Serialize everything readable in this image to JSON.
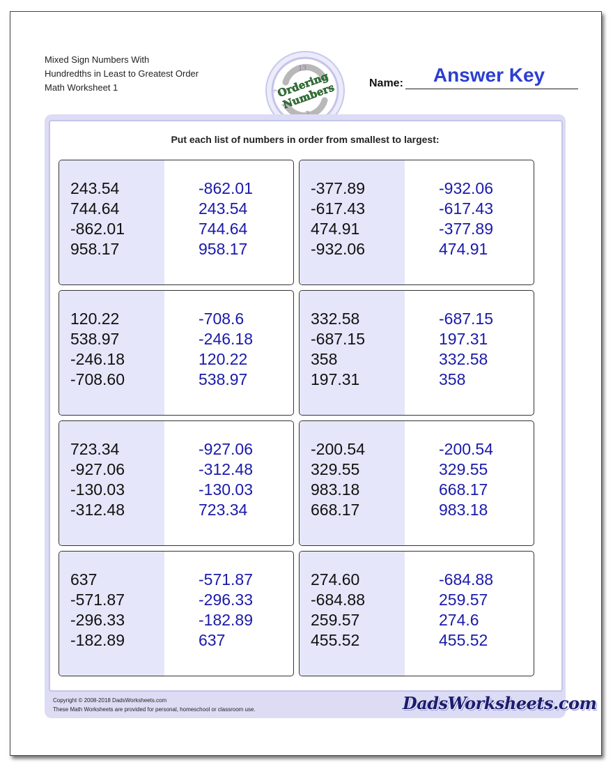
{
  "header": {
    "title_lines": [
      "Mixed Sign Numbers With",
      "Hundredths in Least to Greatest Order",
      "Math Worksheet 1"
    ],
    "name_label": "Name:",
    "answer_key": "Answer Key",
    "logo": {
      "line1": "Ordering",
      "line2": "Numbers",
      "top_number": "13",
      "bottom_number": "7",
      "left_mark": "2"
    }
  },
  "instructions": "Put each list of numbers in order from smallest to largest:",
  "problems": [
    {
      "given": [
        "243.54",
        "744.64",
        "-862.01",
        "958.17"
      ],
      "answer": [
        "-862.01",
        "243.54",
        "744.64",
        "958.17"
      ]
    },
    {
      "given": [
        "-377.89",
        "-617.43",
        "474.91",
        "-932.06"
      ],
      "answer": [
        "-932.06",
        "-617.43",
        "-377.89",
        "474.91"
      ]
    },
    {
      "given": [
        "120.22",
        "538.97",
        "-246.18",
        "-708.60"
      ],
      "answer": [
        "-708.6",
        "-246.18",
        "120.22",
        "538.97"
      ]
    },
    {
      "given": [
        "332.58",
        "-687.15",
        "358",
        "197.31"
      ],
      "answer": [
        "-687.15",
        "197.31",
        "332.58",
        "358"
      ]
    },
    {
      "given": [
        "723.34",
        "-927.06",
        "-130.03",
        "-312.48"
      ],
      "answer": [
        "-927.06",
        "-312.48",
        "-130.03",
        "723.34"
      ]
    },
    {
      "given": [
        "-200.54",
        "329.55",
        "983.18",
        "668.17"
      ],
      "answer": [
        "-200.54",
        "329.55",
        "668.17",
        "983.18"
      ]
    },
    {
      "given": [
        "637",
        "-571.87",
        "-296.33",
        "-182.89"
      ],
      "answer": [
        "-571.87",
        "-296.33",
        "-182.89",
        "637"
      ]
    },
    {
      "given": [
        "274.60",
        "-684.88",
        "259.57",
        "455.52"
      ],
      "answer": [
        "-684.88",
        "259.57",
        "274.6",
        "455.52"
      ]
    }
  ],
  "footer": {
    "copyright": "Copyright © 2008-2018 DadsWorksheets.com",
    "notice": "These Math Worksheets are provided for personal, homeschool or classroom use.",
    "brand": "DadsWorksheets.com"
  },
  "colors": {
    "answer_key": "#2b3fd1",
    "answer_text": "#1a1aaa",
    "panel_shade": "#e6e6fa",
    "frame": "#dcdcf5"
  }
}
